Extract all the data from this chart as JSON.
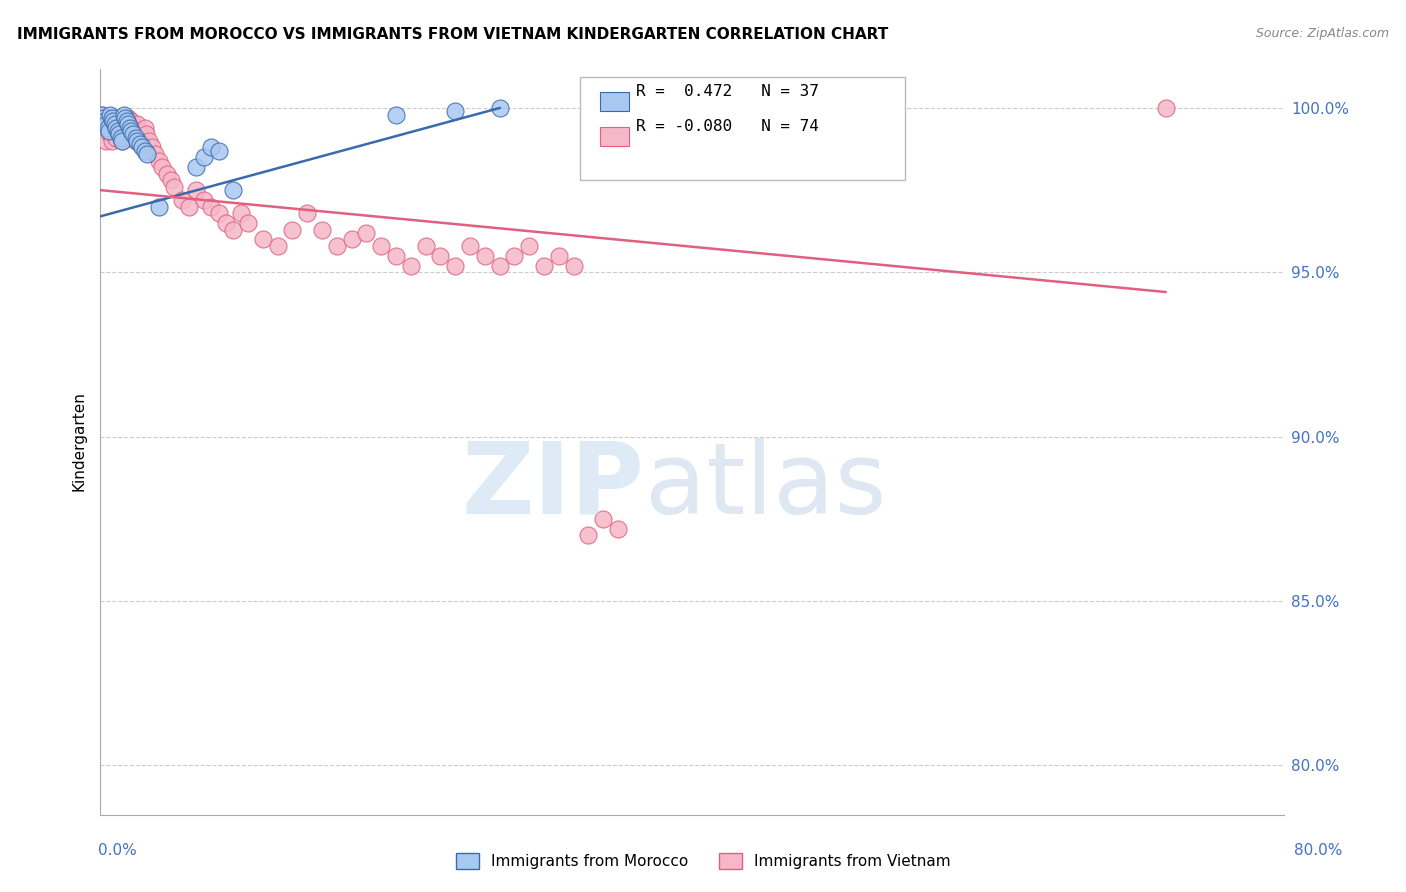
{
  "title": "IMMIGRANTS FROM MOROCCO VS IMMIGRANTS FROM VIETNAM KINDERGARTEN CORRELATION CHART",
  "source": "Source: ZipAtlas.com",
  "ylabel": "Kindergarten",
  "ytick_labels": [
    "100.0%",
    "95.0%",
    "90.0%",
    "85.0%",
    "80.0%"
  ],
  "ytick_values": [
    1.0,
    0.95,
    0.9,
    0.85,
    0.8
  ],
  "xlim": [
    0.0,
    0.8
  ],
  "ylim": [
    0.785,
    1.012
  ],
  "morocco_color": "#A8C8F0",
  "vietnam_color": "#F5B8C8",
  "morocco_line_color": "#3A6AAE",
  "vietnam_line_color": "#E06080",
  "background_color": "#FFFFFF",
  "grid_color": "#CCCCCC",
  "morocco_scatter_x": [
    0.001,
    0.002,
    0.003,
    0.004,
    0.005,
    0.006,
    0.007,
    0.008,
    0.009,
    0.01,
    0.011,
    0.012,
    0.013,
    0.014,
    0.015,
    0.016,
    0.017,
    0.018,
    0.019,
    0.02,
    0.021,
    0.022,
    0.024,
    0.025,
    0.027,
    0.028,
    0.03,
    0.032,
    0.04,
    0.065,
    0.07,
    0.075,
    0.08,
    0.09,
    0.2,
    0.24,
    0.27
  ],
  "morocco_scatter_y": [
    0.998,
    0.997,
    0.996,
    0.995,
    0.994,
    0.993,
    0.998,
    0.997,
    0.996,
    0.995,
    0.994,
    0.993,
    0.992,
    0.991,
    0.99,
    0.998,
    0.997,
    0.996,
    0.995,
    0.994,
    0.993,
    0.992,
    0.991,
    0.99,
    0.989,
    0.988,
    0.987,
    0.986,
    0.97,
    0.982,
    0.985,
    0.988,
    0.987,
    0.975,
    0.998,
    0.999,
    1.0
  ],
  "vietnam_scatter_x": [
    0.001,
    0.002,
    0.003,
    0.004,
    0.005,
    0.006,
    0.007,
    0.008,
    0.009,
    0.01,
    0.011,
    0.012,
    0.013,
    0.014,
    0.015,
    0.016,
    0.017,
    0.018,
    0.019,
    0.02,
    0.021,
    0.022,
    0.023,
    0.024,
    0.025,
    0.026,
    0.027,
    0.028,
    0.03,
    0.031,
    0.033,
    0.035,
    0.037,
    0.04,
    0.042,
    0.045,
    0.048,
    0.05,
    0.055,
    0.06,
    0.065,
    0.07,
    0.075,
    0.08,
    0.085,
    0.09,
    0.095,
    0.1,
    0.11,
    0.12,
    0.13,
    0.14,
    0.15,
    0.16,
    0.17,
    0.18,
    0.19,
    0.2,
    0.21,
    0.22,
    0.23,
    0.24,
    0.25,
    0.26,
    0.27,
    0.28,
    0.29,
    0.3,
    0.31,
    0.32,
    0.33,
    0.34,
    0.35,
    0.72
  ],
  "vietnam_scatter_y": [
    0.998,
    0.995,
    0.993,
    0.99,
    0.997,
    0.994,
    0.992,
    0.99,
    0.996,
    0.993,
    0.991,
    0.997,
    0.994,
    0.992,
    0.99,
    0.995,
    0.993,
    0.991,
    0.997,
    0.993,
    0.996,
    0.994,
    0.992,
    0.99,
    0.995,
    0.993,
    0.991,
    0.989,
    0.994,
    0.992,
    0.99,
    0.988,
    0.986,
    0.984,
    0.982,
    0.98,
    0.978,
    0.976,
    0.972,
    0.97,
    0.975,
    0.972,
    0.97,
    0.968,
    0.965,
    0.963,
    0.968,
    0.965,
    0.96,
    0.958,
    0.963,
    0.968,
    0.963,
    0.958,
    0.96,
    0.962,
    0.958,
    0.955,
    0.952,
    0.958,
    0.955,
    0.952,
    0.958,
    0.955,
    0.952,
    0.955,
    0.958,
    0.952,
    0.955,
    0.952,
    0.87,
    0.875,
    0.872,
    1.0
  ]
}
